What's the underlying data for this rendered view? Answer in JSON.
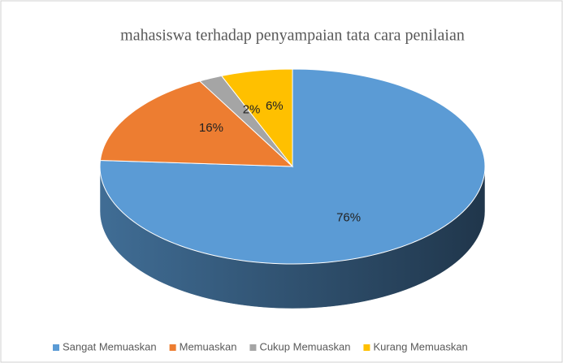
{
  "chart_data": {
    "type": "pie3d",
    "title": "mahasiswa terhadap penyampaian tata cara penilaian",
    "categories": [
      "Sangat Memuaskan",
      "Memuaskan",
      "Cukup Memuaskan",
      "Kurang Memuaskan"
    ],
    "values": [
      76,
      16,
      2,
      6
    ],
    "value_labels": [
      "76%",
      "16%",
      "2%",
      "6%"
    ],
    "colors": [
      "#5b9bd5",
      "#ed7d31",
      "#a5a5a5",
      "#ffc000"
    ],
    "legend": "bottom"
  }
}
